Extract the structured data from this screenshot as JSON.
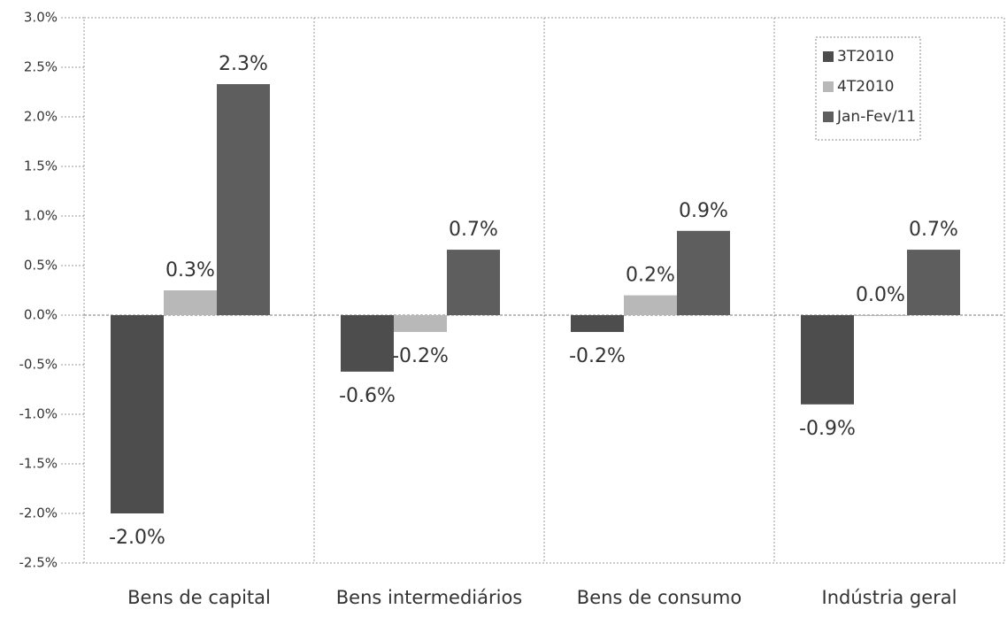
{
  "chart_data": {
    "type": "bar",
    "categories": [
      "Bens de capital",
      "Bens intermediários",
      "Bens de consumo",
      "Indústria geral"
    ],
    "series": [
      {
        "name": "3T2010",
        "color": "#4d4d4d",
        "values": [
          -2.0,
          -0.57,
          -0.17,
          -0.9
        ],
        "value_labels": [
          "-2.0%",
          "-0.6%",
          "-0.2%",
          "-0.9%"
        ]
      },
      {
        "name": "4T2010",
        "color": "#b8b8b8",
        "values": [
          0.25,
          -0.17,
          0.2,
          0.0
        ],
        "value_labels": [
          "0.3%",
          "-0.2%",
          "0.2%",
          "0.0%"
        ]
      },
      {
        "name": "Jan-Fev/11",
        "color": "#5e5e5e",
        "values": [
          2.33,
          0.66,
          0.85,
          0.66
        ],
        "value_labels": [
          "2.3%",
          "0.7%",
          "0.9%",
          "0.7%"
        ]
      }
    ],
    "ylim": [
      -2.5,
      3.0
    ],
    "yticks": [
      {
        "value": -2.5,
        "label": "-2.5%"
      },
      {
        "value": -2.0,
        "label": "-2.0%"
      },
      {
        "value": -1.5,
        "label": "-1.5%"
      },
      {
        "value": -1.0,
        "label": "-1.0%"
      },
      {
        "value": -0.5,
        "label": "-0.5%"
      },
      {
        "value": 0.0,
        "label": "0.0%"
      },
      {
        "value": 0.5,
        "label": "0.5%"
      },
      {
        "value": 1.0,
        "label": "1.0%"
      },
      {
        "value": 1.5,
        "label": "1.5%"
      },
      {
        "value": 2.0,
        "label": "2.0%"
      },
      {
        "value": 2.5,
        "label": "2.5%"
      },
      {
        "value": 3.0,
        "label": "3.0%"
      }
    ],
    "legend": "upper right"
  }
}
